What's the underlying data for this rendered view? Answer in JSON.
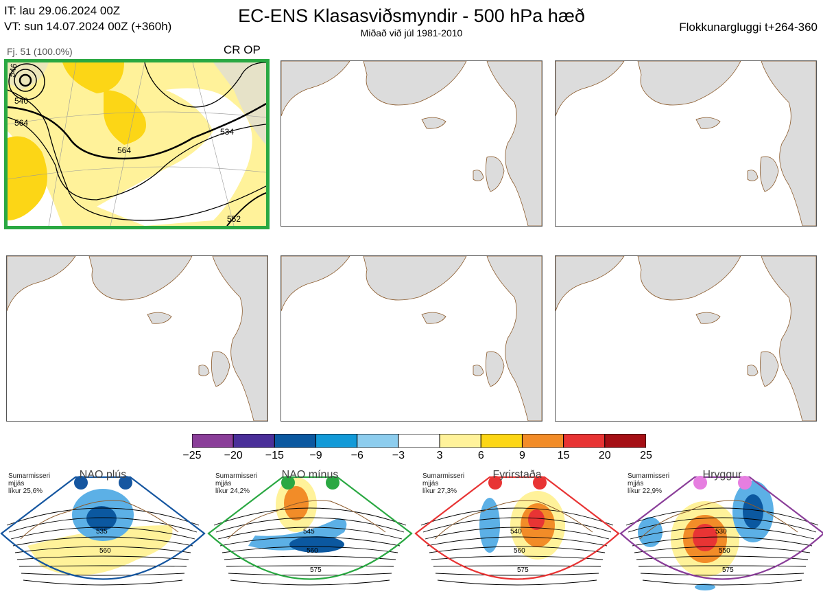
{
  "header": {
    "it_line": "IT: lau 29.06.2024 00Z",
    "vt_line": "VT: sun 14.07.2024 00Z  (+360h)",
    "title": "EC-ENS Klasasviðsmyndir - 500 hPa hæð",
    "subtitle": "Miðað við júl 1981-2010",
    "window": "Flokkunargluggi t+264-360"
  },
  "panel1": {
    "label": "Fj. 51 (100.0%)",
    "tag": "CR OP",
    "contour_labels": [
      "540",
      "546",
      "564",
      "564",
      "534",
      "552"
    ],
    "border_color": "#2aa842"
  },
  "colors": {
    "land": "#dcdcdc",
    "coast": "#8b5a2b",
    "anom_pos": "#fff29a",
    "anom_pos2": "#fcd616",
    "anom_neg": "#5cb0e6",
    "anom_neg2": "#0b58a0"
  },
  "colorbar": {
    "labels": [
      "−25",
      "−20",
      "−15",
      "−9",
      "−6",
      "−3",
      "3",
      "6",
      "9",
      "15",
      "20",
      "25"
    ],
    "colors": [
      "#8a3e99",
      "#4a2f99",
      "#0b58a0",
      "#129ad8",
      "#8dcdee",
      "#ffffff",
      "#fff29a",
      "#fcd616",
      "#f28c28",
      "#e83434",
      "#a50f15"
    ]
  },
  "regimes": [
    {
      "name": "NAO plús",
      "season": "Sumarmisseri",
      "freq": "mjjás",
      "prob": "líkur 25,6%",
      "color": "#1556a0",
      "dot": "#1556a0",
      "contours": [
        "535",
        "560"
      ]
    },
    {
      "name": "NAO mínus",
      "season": "Sumarmisseri",
      "freq": "mjjás",
      "prob": "líkur 24,2%",
      "color": "#2aa842",
      "dot": "#2aa842",
      "contours": [
        "545",
        "560",
        "575"
      ]
    },
    {
      "name": "Fyrirstaða",
      "season": "Sumarmisseri",
      "freq": "mjjás",
      "prob": "líkur 27,3%",
      "color": "#e83434",
      "dot": "#e83434",
      "contours": [
        "540",
        "560",
        "575"
      ]
    },
    {
      "name": "Hryggur",
      "season": "Sumarmisseri",
      "freq": "mjjás",
      "prob": "líkur 22,9%",
      "color": "#8a3e99",
      "dot": "#e67ee0",
      "contours": [
        "530",
        "550",
        "575"
      ]
    }
  ],
  "chart_data": {
    "type": "heatmap",
    "title": "EC-ENS Klasasviðsmyndir - 500 hPa hæð",
    "colorbar_levels": [
      -25,
      -20,
      -15,
      -9,
      -6,
      -3,
      3,
      6,
      9,
      15,
      20,
      25
    ],
    "panels": [
      {
        "label": "Fj. 51 (100.0%)",
        "tag": "CR OP",
        "contours": [
          540,
          546,
          564,
          564,
          534,
          552
        ]
      }
    ],
    "regime_probabilities": [
      {
        "name": "NAO plús",
        "prob_percent": 25.6
      },
      {
        "name": "NAO mínus",
        "prob_percent": 24.2
      },
      {
        "name": "Fyrirstaða",
        "prob_percent": 27.3
      },
      {
        "name": "Hryggur",
        "prob_percent": 22.9
      }
    ]
  }
}
